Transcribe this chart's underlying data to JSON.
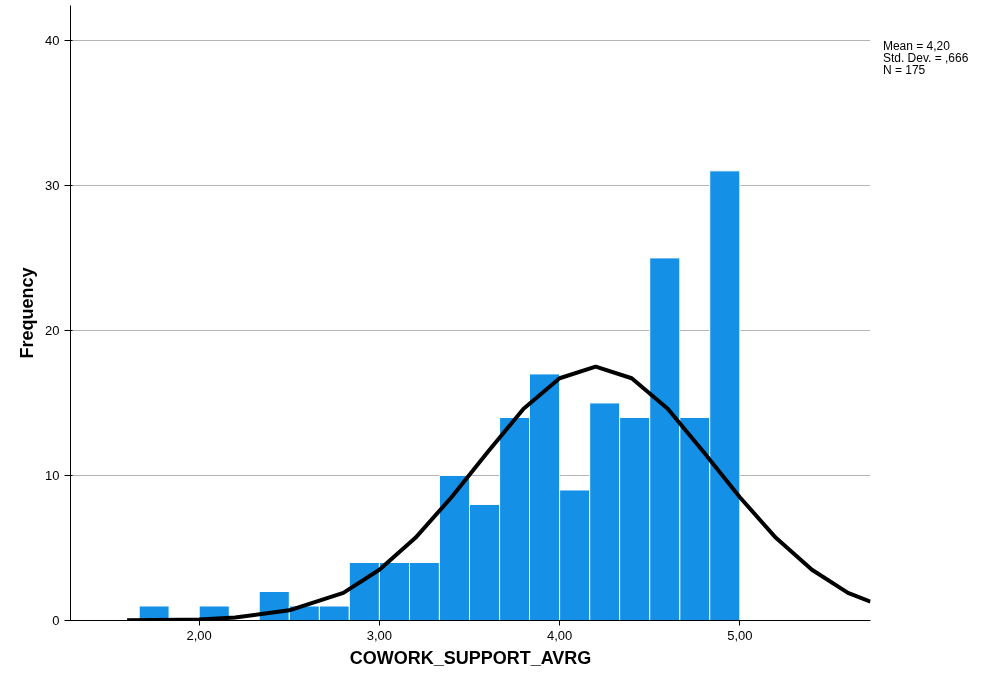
{
  "chart_data": {
    "type": "histogram",
    "xlabel": "COWORK_SUPPORT_AVRG",
    "ylabel": "Frequency",
    "series": [
      {
        "color": "#1490e6",
        "bins": [
          1.667,
          1.833,
          2.0,
          2.167,
          2.333,
          2.5,
          2.667,
          2.833,
          3.0,
          3.167,
          3.333,
          3.5,
          3.667,
          3.833,
          4.0,
          4.167,
          4.333,
          4.5,
          4.667,
          4.833,
          5.0
        ],
        "values": [
          1,
          0,
          1,
          0,
          2,
          1,
          1,
          4,
          4,
          4,
          10,
          8,
          14,
          17,
          9,
          15,
          14,
          25,
          14,
          31
        ]
      },
      {
        "type": "line",
        "color": "#000000",
        "x": [
          1.6,
          1.9,
          2.0,
          2.2,
          2.5,
          2.8,
          3.0,
          3.2,
          3.4,
          3.6,
          3.8,
          4.0,
          4.2,
          4.4,
          4.6,
          4.8,
          5.0,
          5.2,
          5.4,
          5.6,
          5.725
        ],
        "values": [
          0.01,
          0.05,
          0.07,
          0.2,
          0.7,
          1.9,
          3.5,
          5.7,
          8.5,
          11.6,
          14.6,
          16.7,
          17.5,
          16.7,
          14.6,
          11.6,
          8.5,
          5.7,
          3.5,
          1.9,
          1.3
        ]
      }
    ],
    "xlim": [
      1.286,
      5.725
    ],
    "ylim": [
      0,
      42.4
    ],
    "xticks": [
      {
        "value": 2,
        "label": "2,00"
      },
      {
        "value": 3,
        "label": "3,00"
      },
      {
        "value": 4,
        "label": "4,00"
      },
      {
        "value": 5,
        "label": "5,00"
      }
    ],
    "yticks": [
      0,
      10,
      20,
      30,
      40
    ],
    "grid": "y",
    "annotations": [
      "Mean = 4,20",
      "Std. Dev. = ,666",
      "N = 175"
    ]
  }
}
